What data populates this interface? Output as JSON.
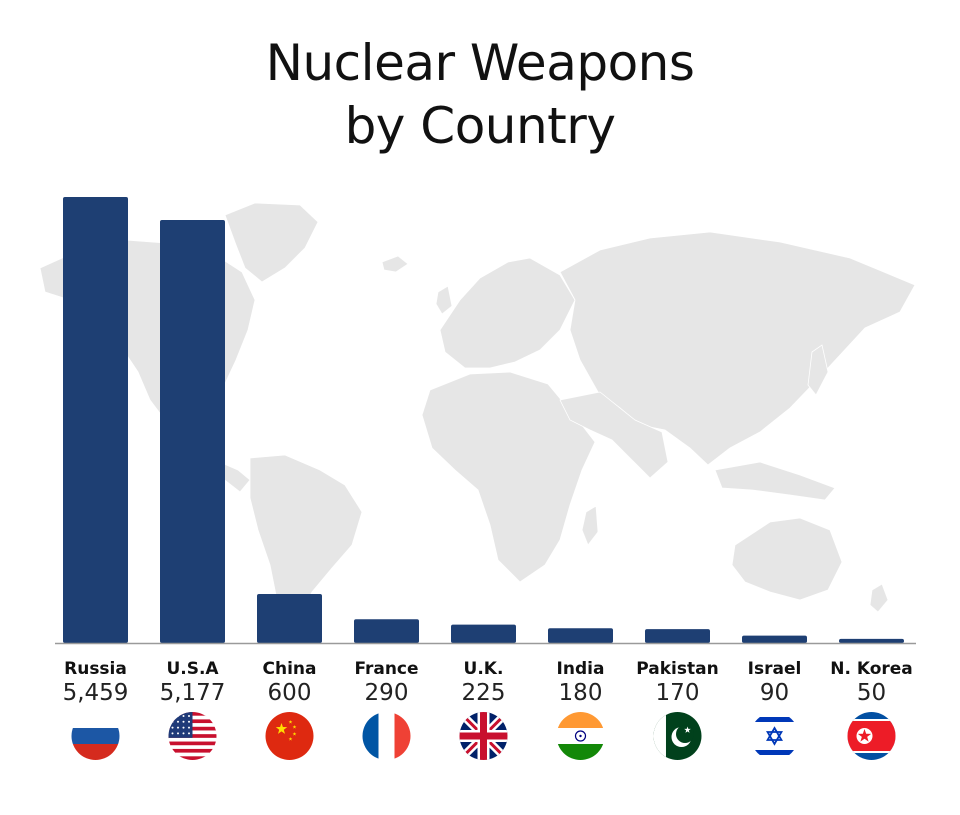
{
  "title_line1": "Nuclear Weapons",
  "title_line2": "by Country",
  "chart_data": {
    "type": "bar",
    "title": "Nuclear Weapons by Country",
    "categories": [
      "Russia",
      "U.S.A",
      "China",
      "France",
      "U.K.",
      "India",
      "Pakistan",
      "Israel",
      "N. Korea"
    ],
    "values": [
      5459,
      5177,
      600,
      290,
      225,
      180,
      170,
      90,
      50
    ],
    "value_labels": [
      "5,459",
      "5,177",
      "600",
      "290",
      "225",
      "180",
      "170",
      "90",
      "50"
    ],
    "flags": [
      "russia-flag",
      "usa-flag",
      "china-flag",
      "france-flag",
      "uk-flag",
      "india-flag",
      "pakistan-flag",
      "israel-flag",
      "north-korea-flag"
    ],
    "xlabel": "",
    "ylabel": "",
    "ylim": [
      0,
      5459
    ],
    "grid": false,
    "bar_color": "#1e3f73",
    "background_map_color": "#e6e6e6"
  }
}
